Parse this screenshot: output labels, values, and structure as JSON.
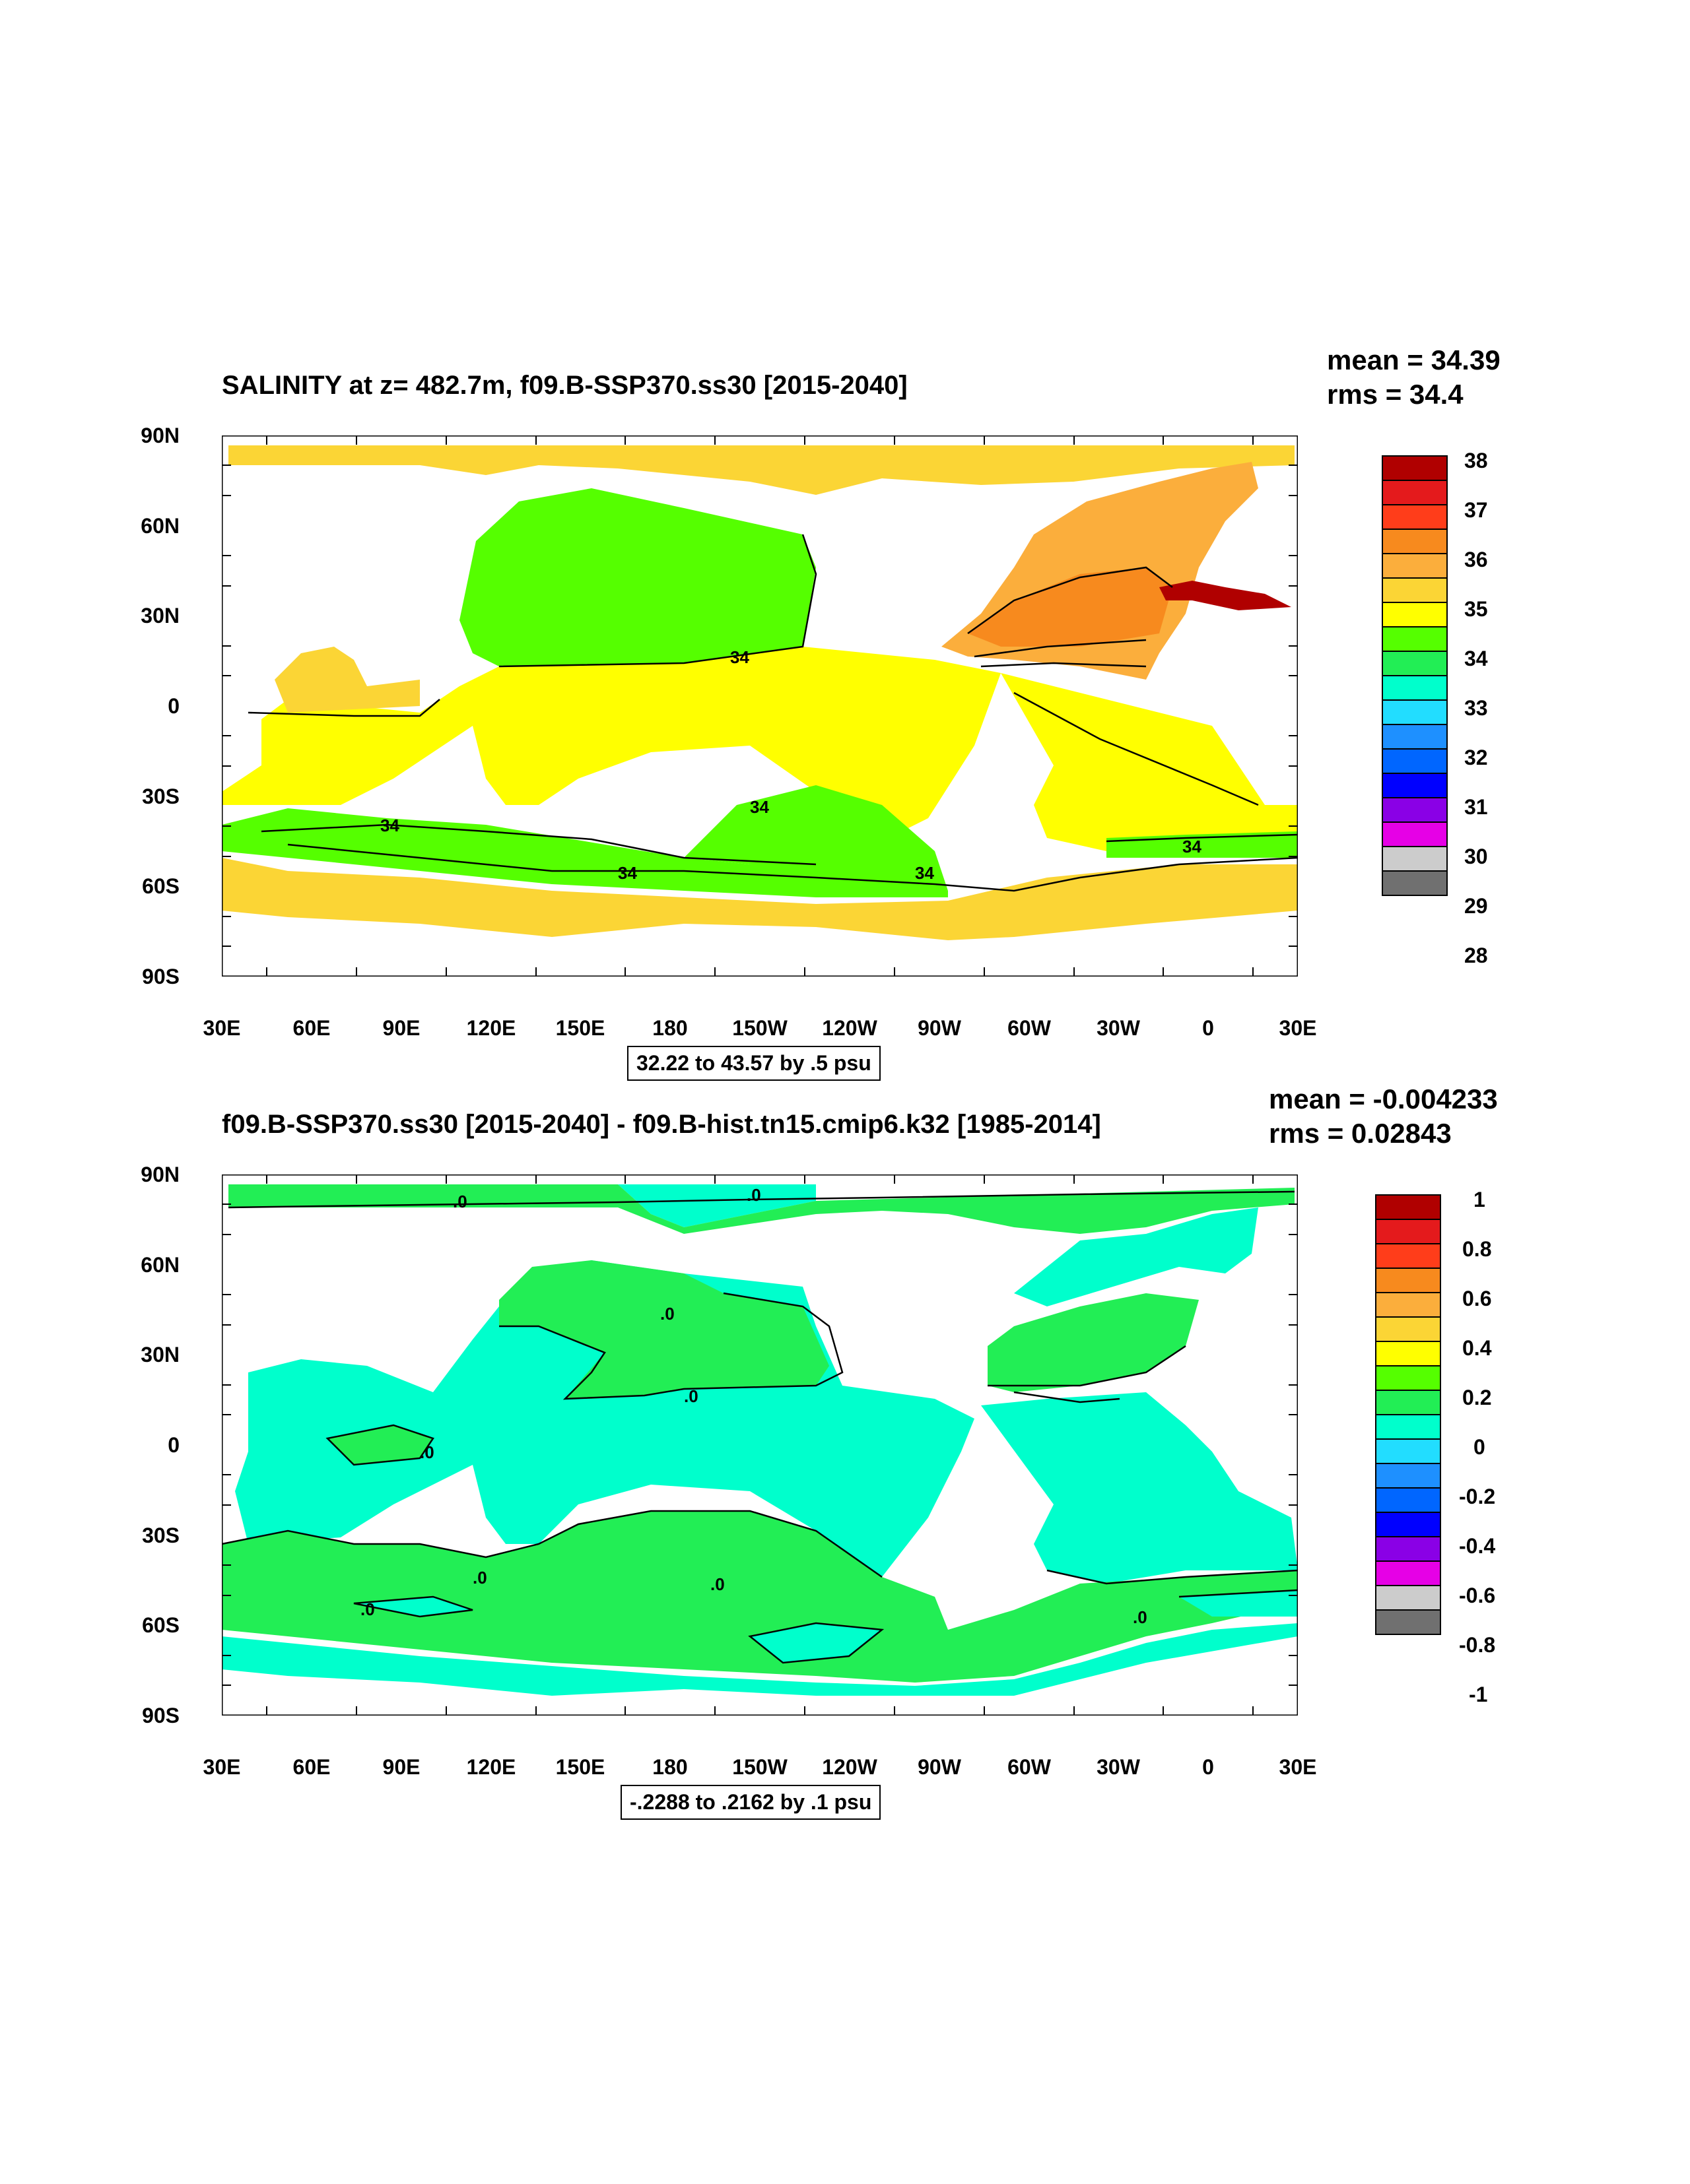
{
  "panels": {
    "top": {
      "title": "SALINITY at z= 482.7m, f09.B-SSP370.ss30 [2015-2040]",
      "mean": "mean = 34.39",
      "rms": "rms = 34.4",
      "info": "32.22 to 43.57 by .5 psu",
      "contour_label": "34",
      "colorbar": {
        "labels": [
          "38",
          "37",
          "36",
          "35",
          "34",
          "33",
          "32",
          "31",
          "30",
          "29",
          "28"
        ],
        "colors": [
          "#b00000",
          "#e41a1c",
          "#ff3d1a",
          "#f78a1e",
          "#fbae3c",
          "#fbd535",
          "#ffff00",
          "#55ff00",
          "#22ee55",
          "#00ffcc",
          "#22ddff",
          "#1e90ff",
          "#0066ff",
          "#0000ff",
          "#8a00e6",
          "#e600e6",
          "#cccccc",
          "#707070"
        ]
      }
    },
    "bottom": {
      "title": "f09.B-SSP370.ss30 [2015-2040] - f09.B-hist.tn15.cmip6.k32 [1985-2014]",
      "mean": "mean = -0.004233",
      "rms": "rms = 0.02843",
      "info": "-.2288 to .2162 by .1 psu",
      "contour_label": ".0",
      "colorbar": {
        "labels": [
          "1",
          "0.8",
          "0.6",
          "0.4",
          "0.2",
          "0",
          "-0.2",
          "-0.4",
          "-0.6",
          "-0.8",
          "-1"
        ],
        "colors": [
          "#b00000",
          "#e41a1c",
          "#ff3d1a",
          "#f78a1e",
          "#fbae3c",
          "#fbd535",
          "#ffff00",
          "#55ff00",
          "#22ee55",
          "#00ffcc",
          "#22ddff",
          "#1e90ff",
          "#0066ff",
          "#0000ff",
          "#8a00e6",
          "#e600e6",
          "#cccccc",
          "#707070"
        ]
      }
    }
  },
  "axes": {
    "y_labels": [
      "90N",
      "60N",
      "30N",
      "0",
      "30S",
      "60S",
      "90S"
    ],
    "x_labels": [
      "30E",
      "60E",
      "90E",
      "120E",
      "150E",
      "180",
      "150W",
      "120W",
      "90W",
      "60W",
      "30W",
      "0",
      "30E"
    ]
  },
  "colors": {
    "land": "#ffffff",
    "contour": "#000000"
  }
}
